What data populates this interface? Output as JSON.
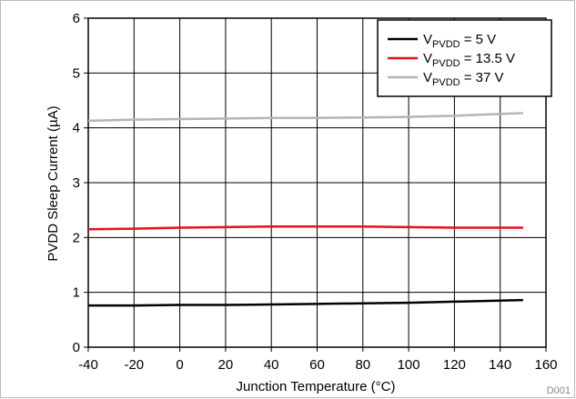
{
  "chart_data": {
    "type": "line",
    "xlabel": "Junction Temperature (°C)",
    "ylabel": "PVDD Sleep Current (µA)",
    "xlim": [
      -40,
      160
    ],
    "ylim": [
      0,
      6
    ],
    "xticks": [
      -40,
      -20,
      0,
      20,
      40,
      60,
      80,
      100,
      120,
      140,
      160
    ],
    "yticks": [
      0,
      1,
      2,
      3,
      4,
      5,
      6
    ],
    "grid": true,
    "legend_position": "top-right",
    "figure_id": "D001",
    "series": [
      {
        "name": "VPVDD = 5 V",
        "name_base": "V",
        "name_sub": "PVDD",
        "name_rest": " = 5 V",
        "color": "#000000",
        "x": [
          -40,
          -20,
          0,
          20,
          40,
          60,
          80,
          100,
          120,
          150
        ],
        "y": [
          0.76,
          0.76,
          0.77,
          0.77,
          0.78,
          0.79,
          0.8,
          0.81,
          0.83,
          0.86
        ]
      },
      {
        "name": "VPVDD = 13.5 V",
        "name_base": "V",
        "name_sub": "PVDD",
        "name_rest": " = 13.5 V",
        "color": "#e8101a",
        "x": [
          -40,
          -20,
          0,
          20,
          40,
          60,
          80,
          100,
          120,
          150
        ],
        "y": [
          2.15,
          2.16,
          2.18,
          2.19,
          2.2,
          2.2,
          2.2,
          2.19,
          2.18,
          2.18
        ]
      },
      {
        "name": "VPVDD = 37 V",
        "name_base": "V",
        "name_sub": "PVDD",
        "name_rest": " = 37 V",
        "color": "#b5b5b5",
        "x": [
          -40,
          -20,
          0,
          20,
          40,
          60,
          80,
          100,
          120,
          150
        ],
        "y": [
          4.13,
          4.15,
          4.16,
          4.17,
          4.18,
          4.18,
          4.19,
          4.2,
          4.22,
          4.27
        ]
      }
    ]
  }
}
